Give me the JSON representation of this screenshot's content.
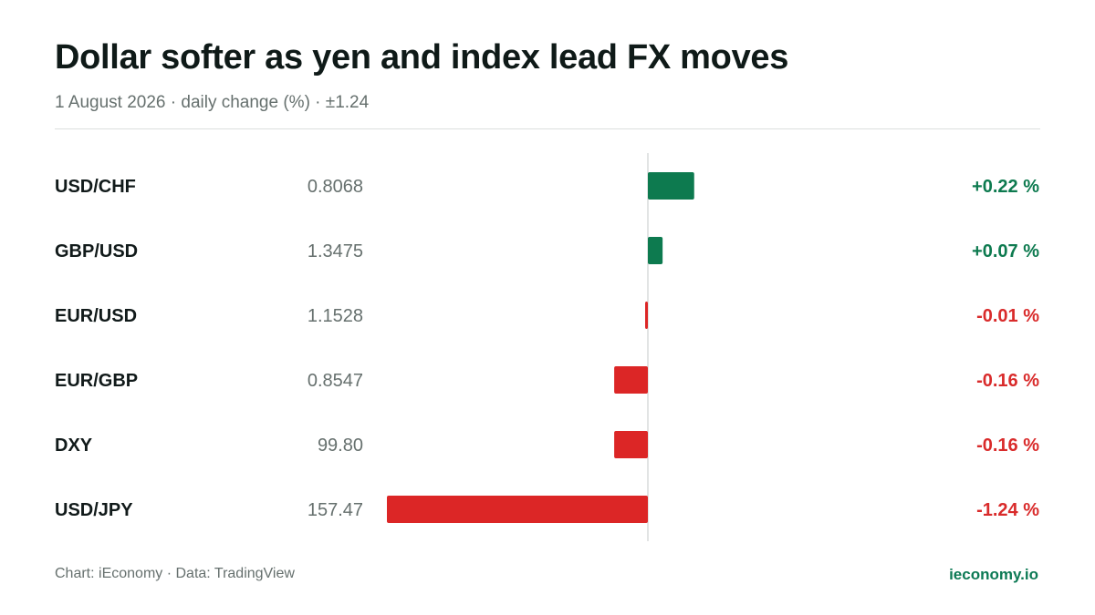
{
  "header": {
    "title": "Dollar softer as yen and index lead FX moves",
    "subtitle": "1 August 2026 · daily change (%) · ±1.24"
  },
  "footer": {
    "credit": "Chart: iEconomy · Data: TradingView",
    "brand": "ieconomy.io"
  },
  "colors": {
    "positive": "#0d7a4f",
    "negative": "#dc2626",
    "positive_text": "#0d7a4f",
    "negative_text": "#d92b2b",
    "axis": "#d9dcdb"
  },
  "chart_data": {
    "type": "bar",
    "orientation": "horizontal",
    "categories": [
      "USD/CHF",
      "GBP/USD",
      "EUR/USD",
      "EUR/GBP",
      "DXY",
      "USD/JPY"
    ],
    "prices": [
      "0.8068",
      "1.3475",
      "1.1528",
      "0.8547",
      "99.80",
      "157.47"
    ],
    "values": [
      0.22,
      0.07,
      -0.01,
      -0.16,
      -0.16,
      -1.24
    ],
    "value_labels": [
      "+0.22 %",
      "+0.07 %",
      "-0.01 %",
      "-0.16 %",
      "-0.16 %",
      "-1.24 %"
    ],
    "xlim": [
      -1.24,
      1.24
    ],
    "grid": false,
    "legend": "none"
  }
}
